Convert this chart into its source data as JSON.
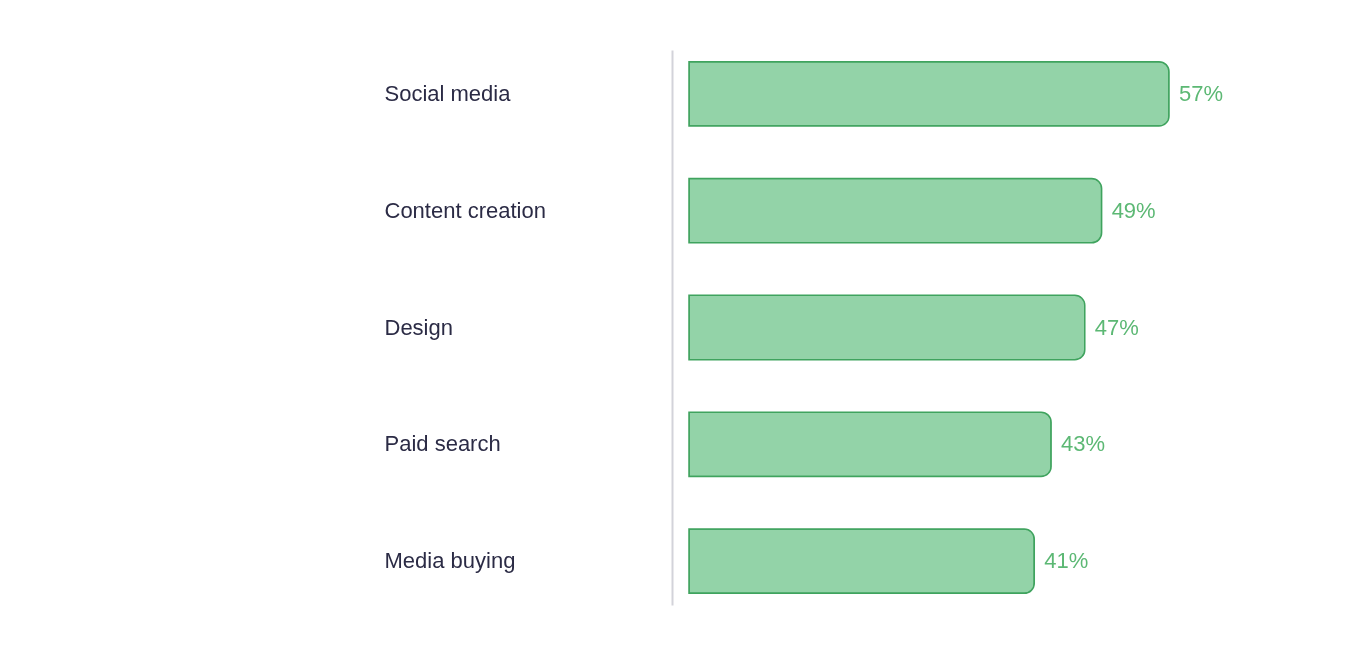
{
  "chart_data": {
    "type": "bar",
    "orientation": "horizontal",
    "categories": [
      "Social media",
      "Content creation",
      "Design",
      "Paid search",
      "Media buying"
    ],
    "values": [
      57,
      49,
      47,
      43,
      41
    ],
    "value_labels": [
      "57%",
      "49%",
      "47%",
      "43%",
      "41%"
    ],
    "color": "#93d3a8",
    "tick_labels": "y"
  }
}
